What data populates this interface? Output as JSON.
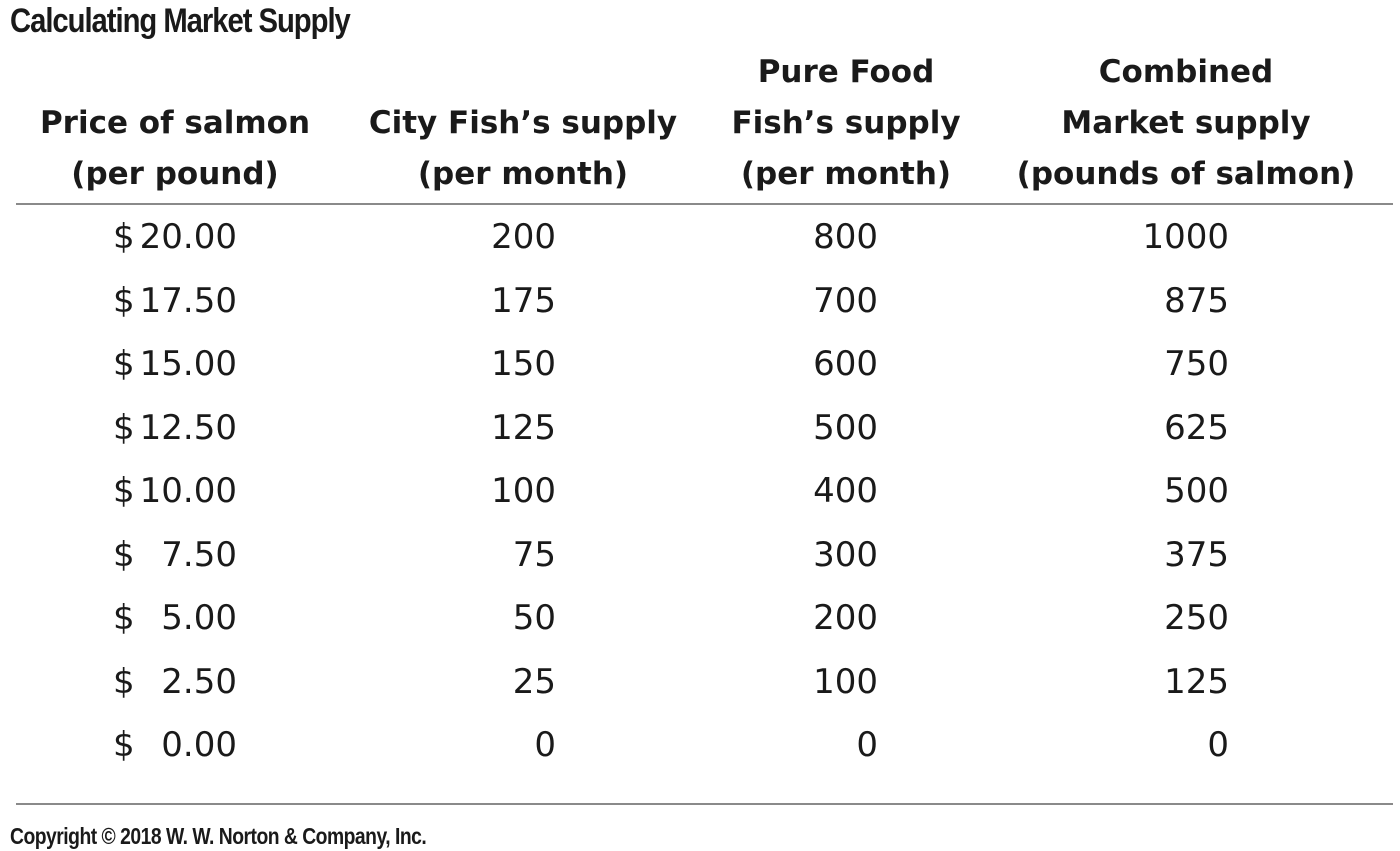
{
  "chart_data": {
    "type": "table",
    "title": "Calculating Market Supply",
    "columns": [
      {
        "lines": [
          "Price of salmon",
          "(per pound)"
        ]
      },
      {
        "lines": [
          "City Fish’s supply",
          "(per month)"
        ]
      },
      {
        "lines": [
          "Pure Food",
          "Fish’s supply",
          "(per month)"
        ]
      },
      {
        "lines": [
          "Combined",
          "Market supply",
          "(pounds of salmon)"
        ]
      }
    ],
    "rows": [
      {
        "price": "20.00",
        "city_fish": 200,
        "pure_food": 800,
        "combined": 1000
      },
      {
        "price": "17.50",
        "city_fish": 175,
        "pure_food": 700,
        "combined": 875
      },
      {
        "price": "15.00",
        "city_fish": 150,
        "pure_food": 600,
        "combined": 750
      },
      {
        "price": "12.50",
        "city_fish": 125,
        "pure_food": 500,
        "combined": 625
      },
      {
        "price": "10.00",
        "city_fish": 100,
        "pure_food": 400,
        "combined": 500
      },
      {
        "price": "7.50",
        "city_fish": 75,
        "pure_food": 300,
        "combined": 375
      },
      {
        "price": "5.00",
        "city_fish": 50,
        "pure_food": 200,
        "combined": 250
      },
      {
        "price": "2.50",
        "city_fish": 25,
        "pure_food": 100,
        "combined": 125
      },
      {
        "price": "0.00",
        "city_fish": 0,
        "pure_food": 0,
        "combined": 0
      }
    ],
    "currency_symbol": "$"
  },
  "footer": {
    "copyright": "Copyright © 2018 W. W. Norton & Company, Inc."
  }
}
